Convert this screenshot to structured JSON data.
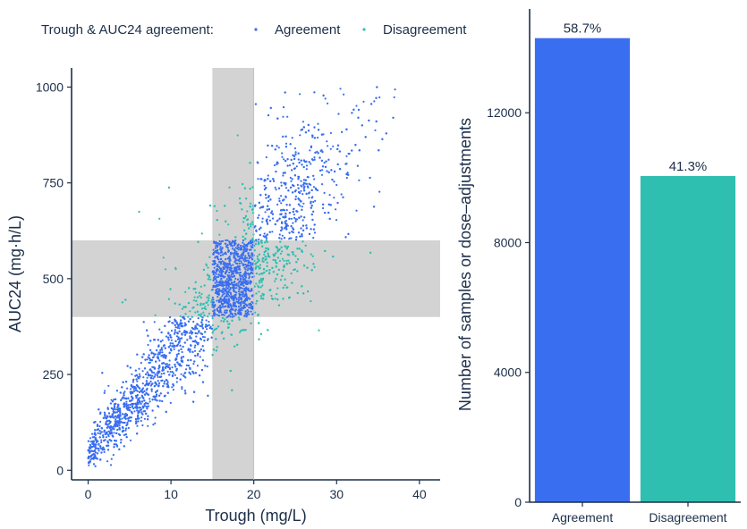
{
  "legend": {
    "title": "Trough & AUC24 agreement:",
    "items": [
      {
        "label": "Agreement",
        "color": "#3a6ef0"
      },
      {
        "label": "Disagreement",
        "color": "#2fbfb1"
      }
    ]
  },
  "chart_data": [
    {
      "type": "scatter",
      "xlabel": "Trough (mg/L)",
      "ylabel": "AUC24 (mg·h/L)",
      "xlim": [
        -2,
        42.5
      ],
      "ylim": [
        -25,
        1050
      ],
      "xticks": [
        0,
        10,
        20,
        30,
        40
      ],
      "yticks": [
        0,
        250,
        500,
        750,
        1000
      ],
      "target_bands": {
        "trough_range": [
          15,
          20
        ],
        "auc_range": [
          400,
          600
        ],
        "color": "#d3d3d3"
      },
      "grid": false,
      "legend_position": "top",
      "series": [
        {
          "name": "Agreement",
          "color": "#3a6ef0",
          "description_points": [
            [
              0.5,
              40
            ],
            [
              3,
              150
            ],
            [
              6,
              260
            ],
            [
              10,
              380
            ],
            [
              13,
              420
            ],
            [
              17,
              500
            ],
            [
              22,
              700
            ],
            [
              27,
              830
            ],
            [
              32,
              900
            ],
            [
              38,
              980
            ]
          ]
        },
        {
          "name": "Disagreement",
          "color": "#2fbfb1",
          "description_points": [
            [
              6,
              450
            ],
            [
              10,
              500
            ],
            [
              12,
              560
            ],
            [
              14,
              650
            ],
            [
              16,
              700
            ],
            [
              18,
              750
            ],
            [
              21,
              560
            ],
            [
              22,
              520
            ]
          ]
        }
      ]
    },
    {
      "type": "bar",
      "categories": [
        "Agreement",
        "Disagreement"
      ],
      "values": [
        14300,
        10050
      ],
      "data_labels": [
        "58.7%",
        "41.3%"
      ],
      "colors": [
        "#3a6ef0",
        "#2fbfb1"
      ],
      "xlabel": "",
      "ylabel": "Number of samples or dose–adjustments",
      "ylim": [
        0,
        15200
      ],
      "yticks": [
        0,
        4000,
        8000,
        12000
      ],
      "grid": false
    }
  ]
}
